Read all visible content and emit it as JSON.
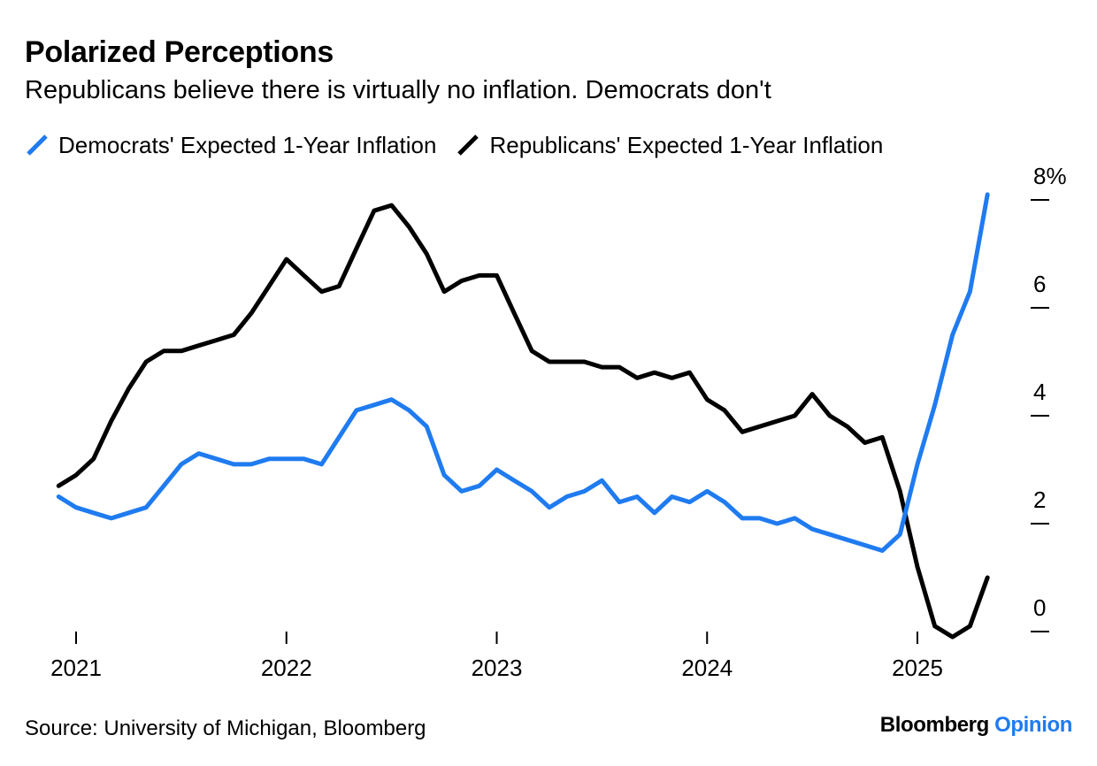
{
  "header": {
    "title": "Polarized Perceptions",
    "subtitle": "Republicans believe there is virtually no inflation. Democrats don't"
  },
  "footer": {
    "source": "Source: University of Michigan, Bloomberg",
    "brand_main": "Bloomberg",
    "brand_accent": "Opinion"
  },
  "colors": {
    "democrats": "#1f7bf0",
    "republicans": "#000000",
    "brand_accent": "#1f7bf0"
  },
  "chart_data": {
    "type": "line",
    "title": "Polarized Perceptions",
    "subtitle": "Republicans believe there is virtually no inflation. Democrats don't",
    "xlabel": "",
    "ylabel": "",
    "x_unit": "year (decimal)",
    "xlim": [
      2020.9,
      2025.4
    ],
    "ylim": [
      -0.2,
      8
    ],
    "x_ticks": [
      {
        "value": 2021,
        "label": "2021"
      },
      {
        "value": 2022,
        "label": "2022"
      },
      {
        "value": 2023,
        "label": "2023"
      },
      {
        "value": 2024,
        "label": "2024"
      },
      {
        "value": 2025,
        "label": "2025"
      }
    ],
    "y_ticks": [
      {
        "value": 0,
        "label": "0"
      },
      {
        "value": 2,
        "label": "2"
      },
      {
        "value": 4,
        "label": "4"
      },
      {
        "value": 6,
        "label": "6"
      },
      {
        "value": 8,
        "label": "8%"
      }
    ],
    "y_axis_side": "right",
    "grid": false,
    "legend_position": "top-left",
    "series": [
      {
        "name": "Democrats' Expected 1-Year Inflation",
        "color": "#1f7bf0",
        "points": [
          [
            2020.917,
            2.5
          ],
          [
            2021.0,
            2.3
          ],
          [
            2021.083,
            2.2
          ],
          [
            2021.167,
            2.1
          ],
          [
            2021.25,
            2.2
          ],
          [
            2021.333,
            2.3
          ],
          [
            2021.417,
            2.7
          ],
          [
            2021.5,
            3.1
          ],
          [
            2021.583,
            3.3
          ],
          [
            2021.667,
            3.2
          ],
          [
            2021.75,
            3.1
          ],
          [
            2021.833,
            3.1
          ],
          [
            2021.917,
            3.2
          ],
          [
            2022.0,
            3.2
          ],
          [
            2022.083,
            3.2
          ],
          [
            2022.167,
            3.1
          ],
          [
            2022.25,
            3.6
          ],
          [
            2022.333,
            4.1
          ],
          [
            2022.417,
            4.2
          ],
          [
            2022.5,
            4.3
          ],
          [
            2022.583,
            4.1
          ],
          [
            2022.667,
            3.8
          ],
          [
            2022.75,
            2.9
          ],
          [
            2022.833,
            2.6
          ],
          [
            2022.917,
            2.7
          ],
          [
            2023.0,
            3.0
          ],
          [
            2023.083,
            2.8
          ],
          [
            2023.167,
            2.6
          ],
          [
            2023.25,
            2.3
          ],
          [
            2023.333,
            2.5
          ],
          [
            2023.417,
            2.6
          ],
          [
            2023.5,
            2.8
          ],
          [
            2023.583,
            2.4
          ],
          [
            2023.667,
            2.5
          ],
          [
            2023.75,
            2.2
          ],
          [
            2023.833,
            2.5
          ],
          [
            2023.917,
            2.4
          ],
          [
            2024.0,
            2.6
          ],
          [
            2024.083,
            2.4
          ],
          [
            2024.167,
            2.1
          ],
          [
            2024.25,
            2.1
          ],
          [
            2024.333,
            2.0
          ],
          [
            2024.417,
            2.1
          ],
          [
            2024.5,
            1.9
          ],
          [
            2024.583,
            1.8
          ],
          [
            2024.667,
            1.7
          ],
          [
            2024.75,
            1.6
          ],
          [
            2024.833,
            1.5
          ],
          [
            2024.917,
            1.8
          ],
          [
            2025.0,
            3.1
          ],
          [
            2025.083,
            4.2
          ],
          [
            2025.167,
            5.5
          ],
          [
            2025.25,
            6.3
          ],
          [
            2025.333,
            8.1
          ]
        ]
      },
      {
        "name": "Republicans' Expected 1-Year Inflation",
        "color": "#000000",
        "points": [
          [
            2020.917,
            2.7
          ],
          [
            2021.0,
            2.9
          ],
          [
            2021.083,
            3.2
          ],
          [
            2021.167,
            3.9
          ],
          [
            2021.25,
            4.5
          ],
          [
            2021.333,
            5.0
          ],
          [
            2021.417,
            5.2
          ],
          [
            2021.5,
            5.2
          ],
          [
            2021.583,
            5.3
          ],
          [
            2021.667,
            5.4
          ],
          [
            2021.75,
            5.5
          ],
          [
            2021.833,
            5.9
          ],
          [
            2021.917,
            6.4
          ],
          [
            2022.0,
            6.9
          ],
          [
            2022.083,
            6.6
          ],
          [
            2022.167,
            6.3
          ],
          [
            2022.25,
            6.4
          ],
          [
            2022.333,
            7.1
          ],
          [
            2022.417,
            7.8
          ],
          [
            2022.5,
            7.9
          ],
          [
            2022.583,
            7.5
          ],
          [
            2022.667,
            7.0
          ],
          [
            2022.75,
            6.3
          ],
          [
            2022.833,
            6.5
          ],
          [
            2022.917,
            6.6
          ],
          [
            2023.0,
            6.6
          ],
          [
            2023.083,
            5.9
          ],
          [
            2023.167,
            5.2
          ],
          [
            2023.25,
            5.0
          ],
          [
            2023.333,
            5.0
          ],
          [
            2023.417,
            5.0
          ],
          [
            2023.5,
            4.9
          ],
          [
            2023.583,
            4.9
          ],
          [
            2023.667,
            4.7
          ],
          [
            2023.75,
            4.8
          ],
          [
            2023.833,
            4.7
          ],
          [
            2023.917,
            4.8
          ],
          [
            2024.0,
            4.3
          ],
          [
            2024.083,
            4.1
          ],
          [
            2024.167,
            3.7
          ],
          [
            2024.25,
            3.8
          ],
          [
            2024.333,
            3.9
          ],
          [
            2024.417,
            4.0
          ],
          [
            2024.5,
            4.4
          ],
          [
            2024.583,
            4.0
          ],
          [
            2024.667,
            3.8
          ],
          [
            2024.75,
            3.5
          ],
          [
            2024.833,
            3.6
          ],
          [
            2024.917,
            2.6
          ],
          [
            2025.0,
            1.2
          ],
          [
            2025.083,
            0.1
          ],
          [
            2025.167,
            -0.1
          ],
          [
            2025.25,
            0.1
          ],
          [
            2025.333,
            1.0
          ]
        ]
      }
    ]
  }
}
